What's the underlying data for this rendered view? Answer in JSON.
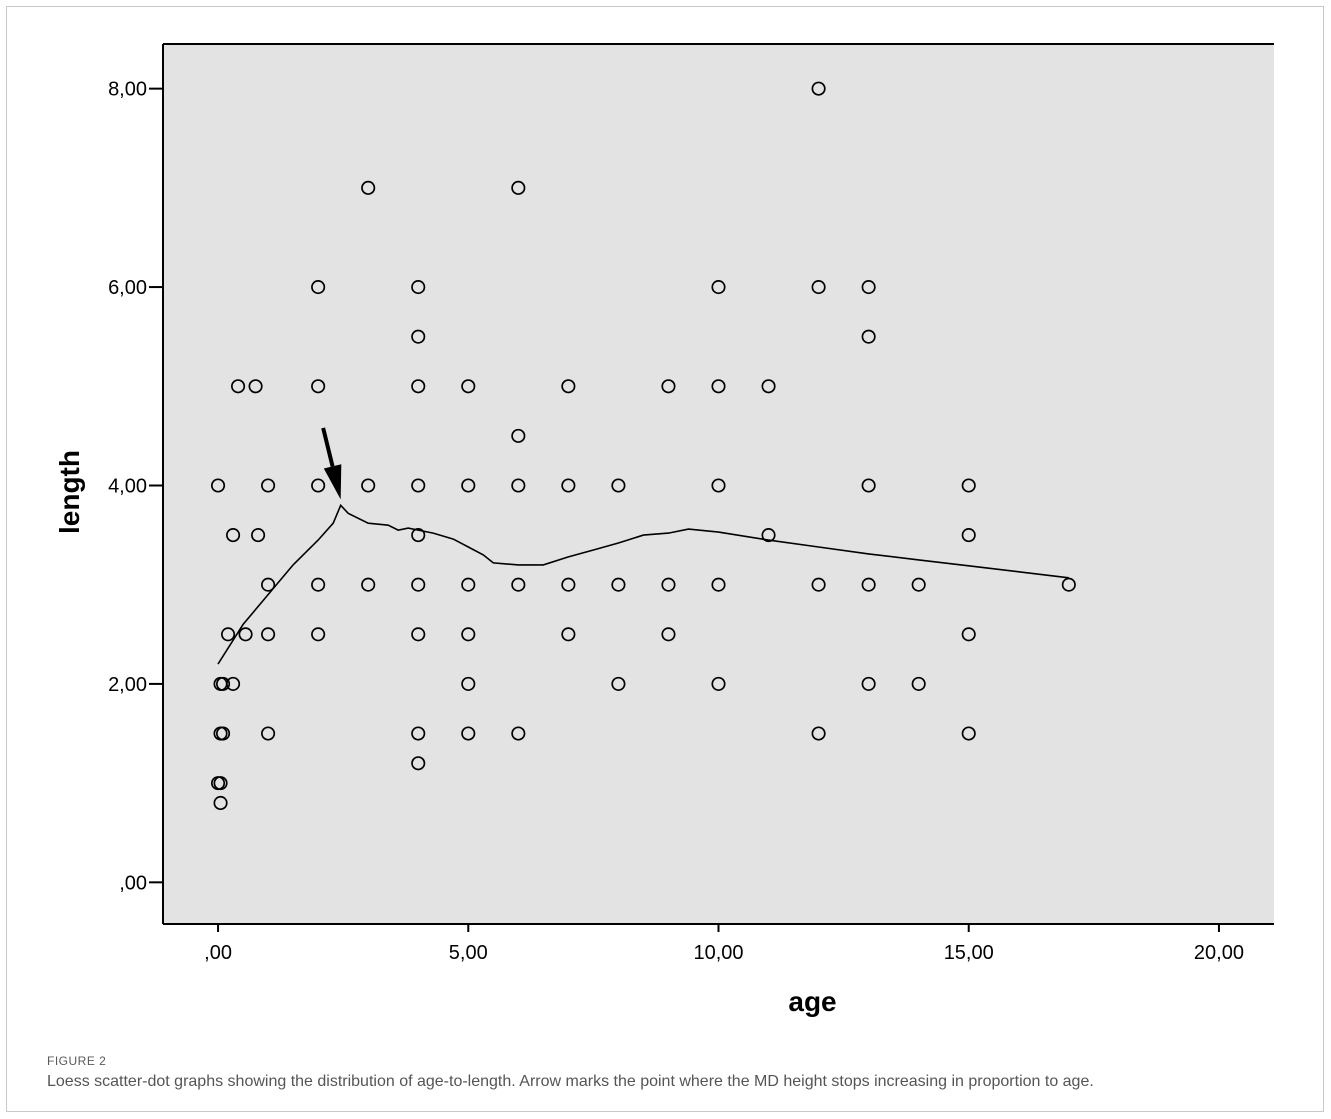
{
  "figure": {
    "label": "FIGURE 2",
    "caption": "Loess scatter-dot graphs showing the distribution of age-to-length. Arrow marks the point where the MD height stops increasing in proportion to age."
  },
  "chart_data": {
    "type": "scatter",
    "xlabel": "age",
    "ylabel": "length",
    "xlim": [
      -1.1,
      21.1
    ],
    "ylim": [
      -0.42,
      8.45
    ],
    "xticks": [
      0,
      5,
      10,
      15,
      20
    ],
    "xtick_labels": [
      ",00",
      "5,00",
      "10,00",
      "15,00",
      "20,00"
    ],
    "yticks": [
      0,
      2,
      4,
      6,
      8
    ],
    "ytick_labels": [
      ",00",
      "2,00",
      "4,00",
      "6,00",
      "8,00"
    ],
    "grid": false,
    "background_color": "#e3e3e3",
    "marker": "open-circle",
    "points": [
      [
        0,
        4
      ],
      [
        0.05,
        2
      ],
      [
        0.05,
        1.5
      ],
      [
        0.1,
        2
      ],
      [
        0.1,
        1.5
      ],
      [
        0,
        1
      ],
      [
        0.05,
        1
      ],
      [
        0.05,
        0.8
      ],
      [
        0.3,
        2
      ],
      [
        0.2,
        2.5
      ],
      [
        0.3,
        3.5
      ],
      [
        0.4,
        5
      ],
      [
        0.55,
        2.5
      ],
      [
        0.75,
        5
      ],
      [
        0.8,
        3.5
      ],
      [
        1,
        4
      ],
      [
        1,
        3
      ],
      [
        1,
        2.5
      ],
      [
        1,
        1.5
      ],
      [
        2,
        6
      ],
      [
        2,
        5
      ],
      [
        2,
        4
      ],
      [
        2,
        3
      ],
      [
        2,
        2.5
      ],
      [
        3,
        7
      ],
      [
        3,
        4
      ],
      [
        3,
        3
      ],
      [
        4,
        6
      ],
      [
        4,
        5.5
      ],
      [
        4,
        5
      ],
      [
        4,
        4
      ],
      [
        4,
        3.5
      ],
      [
        4,
        3
      ],
      [
        4,
        2.5
      ],
      [
        4,
        1.5
      ],
      [
        4,
        1.2
      ],
      [
        5,
        5
      ],
      [
        5,
        4
      ],
      [
        5,
        3
      ],
      [
        5,
        2.5
      ],
      [
        5,
        2
      ],
      [
        5,
        1.5
      ],
      [
        6,
        7
      ],
      [
        6,
        4.5
      ],
      [
        6,
        4
      ],
      [
        6,
        3
      ],
      [
        6,
        1.5
      ],
      [
        7,
        5
      ],
      [
        7,
        4
      ],
      [
        7,
        3
      ],
      [
        7,
        2.5
      ],
      [
        8,
        4
      ],
      [
        8,
        3
      ],
      [
        8,
        2
      ],
      [
        9,
        5
      ],
      [
        9,
        3
      ],
      [
        9,
        2.5
      ],
      [
        10,
        6
      ],
      [
        10,
        5
      ],
      [
        10,
        4
      ],
      [
        10,
        3
      ],
      [
        10,
        2
      ],
      [
        11,
        5
      ],
      [
        11,
        3.5
      ],
      [
        12,
        8
      ],
      [
        12,
        6
      ],
      [
        12,
        3
      ],
      [
        12,
        1.5
      ],
      [
        13,
        6
      ],
      [
        13,
        5.5
      ],
      [
        13,
        4
      ],
      [
        13,
        3
      ],
      [
        13,
        2
      ],
      [
        14,
        3
      ],
      [
        14,
        2
      ],
      [
        15,
        4
      ],
      [
        15,
        3.5
      ],
      [
        15,
        2.5
      ],
      [
        15,
        1.5
      ],
      [
        17,
        3
      ]
    ],
    "loess_line": [
      [
        0,
        2.2
      ],
      [
        0.5,
        2.6
      ],
      [
        1,
        2.9
      ],
      [
        1.5,
        3.2
      ],
      [
        2,
        3.45
      ],
      [
        2.3,
        3.62
      ],
      [
        2.45,
        3.8
      ],
      [
        2.6,
        3.72
      ],
      [
        3,
        3.62
      ],
      [
        3.4,
        3.6
      ],
      [
        3.6,
        3.55
      ],
      [
        3.8,
        3.57
      ],
      [
        4,
        3.55
      ],
      [
        4.3,
        3.52
      ],
      [
        4.7,
        3.46
      ],
      [
        5,
        3.38
      ],
      [
        5.3,
        3.3
      ],
      [
        5.5,
        3.22
      ],
      [
        6,
        3.2
      ],
      [
        6.5,
        3.2
      ],
      [
        7,
        3.28
      ],
      [
        7.5,
        3.35
      ],
      [
        8,
        3.42
      ],
      [
        8.5,
        3.5
      ],
      [
        9,
        3.52
      ],
      [
        9.4,
        3.56
      ],
      [
        10,
        3.53
      ],
      [
        11,
        3.45
      ],
      [
        12,
        3.38
      ],
      [
        13,
        3.31
      ],
      [
        14,
        3.25
      ],
      [
        15,
        3.19
      ],
      [
        16,
        3.13
      ],
      [
        17,
        3.07
      ]
    ],
    "arrow": {
      "from": [
        2.1,
        4.58
      ],
      "to": [
        2.45,
        3.86
      ]
    }
  }
}
